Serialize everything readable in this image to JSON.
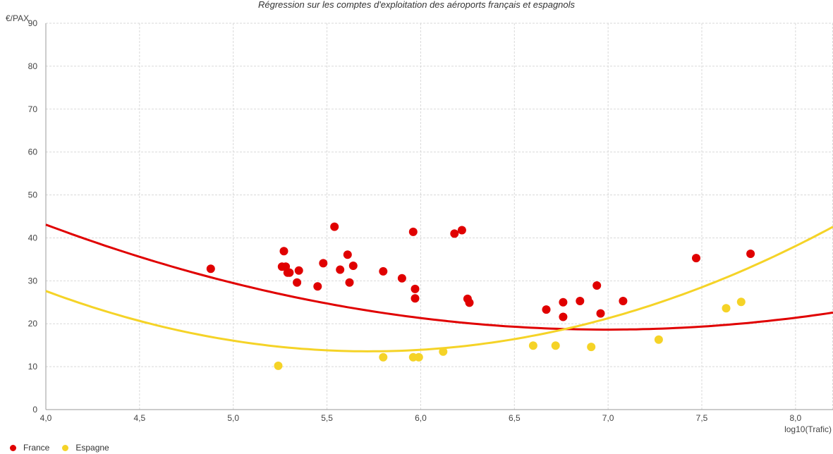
{
  "chart_data": {
    "type": "scatter",
    "title": "Régression sur les comptes d'exploitation des aéroports français et espagnols",
    "xlabel": "log10(Trafic)",
    "ylabel": "€/PAX",
    "xlim": [
      4.0,
      8.2
    ],
    "ylim": [
      0,
      90
    ],
    "x_ticks": [
      4.0,
      4.5,
      5.0,
      5.5,
      6.0,
      6.5,
      7.0,
      7.5,
      8.0
    ],
    "x_tick_labels": [
      "4,0",
      "4,5",
      "5,0",
      "5,5",
      "6,0",
      "6,5",
      "7,0",
      "7,5",
      "8,0"
    ],
    "y_ticks": [
      0,
      10,
      20,
      30,
      40,
      50,
      60,
      70,
      80,
      90
    ],
    "y_tick_labels": [
      "0",
      "10",
      "20",
      "30",
      "40",
      "50",
      "60",
      "70",
      "80",
      "90"
    ],
    "grid": true,
    "legend_position": "bottom-left",
    "series": [
      {
        "name": "France",
        "color": "#e00000",
        "points": [
          [
            4.88,
            32.8
          ],
          [
            5.26,
            33.3
          ],
          [
            5.27,
            36.9
          ],
          [
            5.28,
            33.3
          ],
          [
            5.29,
            31.9
          ],
          [
            5.3,
            31.9
          ],
          [
            5.34,
            29.6
          ],
          [
            5.35,
            32.4
          ],
          [
            5.45,
            28.7
          ],
          [
            5.48,
            34.1
          ],
          [
            5.54,
            42.6
          ],
          [
            5.57,
            32.6
          ],
          [
            5.61,
            36.1
          ],
          [
            5.62,
            29.6
          ],
          [
            5.64,
            33.5
          ],
          [
            5.8,
            32.2
          ],
          [
            5.9,
            30.6
          ],
          [
            5.96,
            41.4
          ],
          [
            5.97,
            28.1
          ],
          [
            5.97,
            25.9
          ],
          [
            6.18,
            41.0
          ],
          [
            6.22,
            41.8
          ],
          [
            6.25,
            25.8
          ],
          [
            6.26,
            24.9
          ],
          [
            6.67,
            23.3
          ],
          [
            6.76,
            25.0
          ],
          [
            6.76,
            21.6
          ],
          [
            6.85,
            25.3
          ],
          [
            6.94,
            28.9
          ],
          [
            6.96,
            22.4
          ],
          [
            7.08,
            25.3
          ],
          [
            7.47,
            35.3
          ],
          [
            7.76,
            36.3
          ]
        ],
        "trend": {
          "type": "quadratic",
          "coefficients": [
            152.1,
            -38.17,
            2.729
          ]
        }
      },
      {
        "name": "Espagne",
        "color": "#f5d327",
        "points": [
          [
            5.24,
            10.2
          ],
          [
            5.8,
            12.2
          ],
          [
            5.96,
            12.2
          ],
          [
            5.99,
            12.2
          ],
          [
            6.12,
            13.5
          ],
          [
            6.6,
            14.9
          ],
          [
            6.72,
            14.9
          ],
          [
            6.91,
            14.6
          ],
          [
            7.27,
            16.3
          ],
          [
            7.63,
            23.6
          ],
          [
            7.71,
            25.1
          ]
        ],
        "trend": {
          "type": "quadratic",
          "coefficients": [
            168.6,
            -54.17,
            4.732
          ]
        }
      }
    ]
  }
}
